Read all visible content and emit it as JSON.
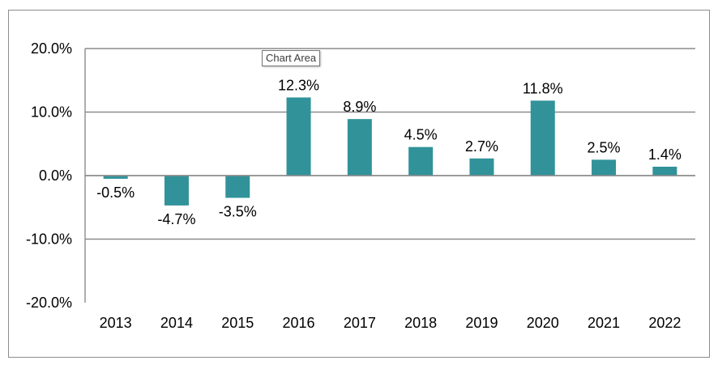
{
  "tooltip": "Chart Area",
  "chart_data": {
    "type": "bar",
    "categories": [
      "2013",
      "2014",
      "2015",
      "2016",
      "2017",
      "2018",
      "2019",
      "2020",
      "2021",
      "2022"
    ],
    "values": [
      -0.5,
      -4.7,
      -3.5,
      12.3,
      8.9,
      4.5,
      2.7,
      11.8,
      2.5,
      1.4
    ],
    "data_labels": [
      "-0.5%",
      "-4.7%",
      "-3.5%",
      "12.3%",
      "8.9%",
      "4.5%",
      "2.7%",
      "11.8%",
      "2.5%",
      "1.4%"
    ],
    "y_ticks": [
      20,
      10,
      0,
      -10,
      -20
    ],
    "y_tick_labels": [
      "20.0%",
      "10.0%",
      "0.0%",
      "-10.0%",
      "-20.0%"
    ],
    "ylim": [
      -20,
      20
    ],
    "grid": true,
    "bar_color": "#31929a",
    "title": "",
    "xlabel": "",
    "ylabel": ""
  }
}
